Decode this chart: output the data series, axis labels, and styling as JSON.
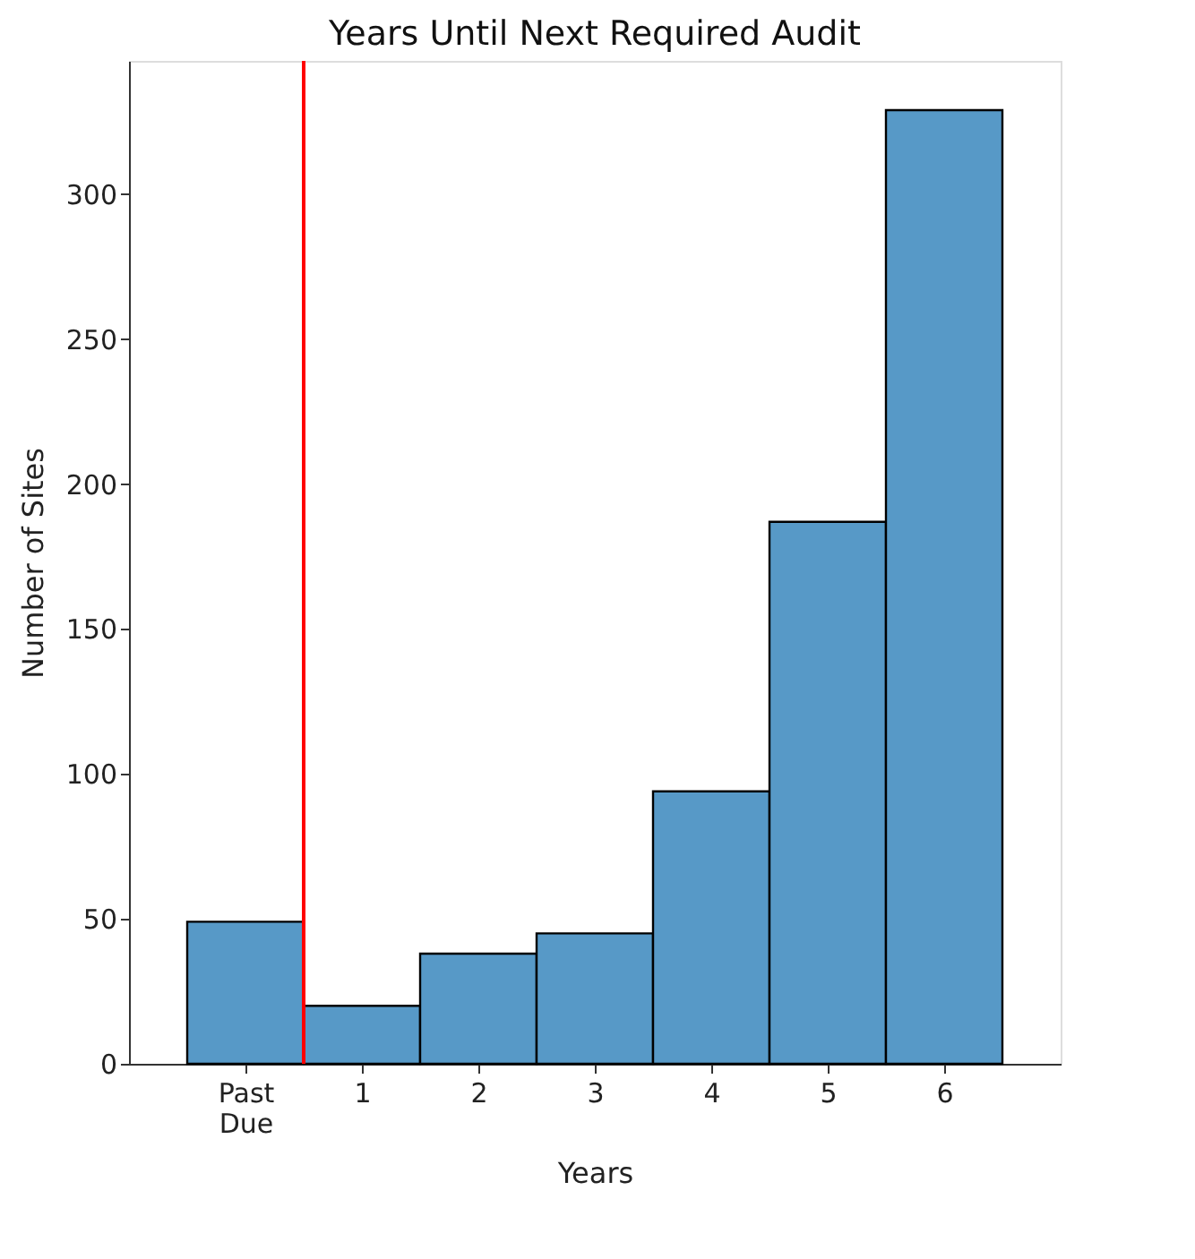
{
  "chart_data": {
    "type": "histogram",
    "title": "Years Until Next Required Audit",
    "xlabel": "Years",
    "ylabel": "Number of Sites",
    "bins": [
      -0.5,
      0.5,
      1.5,
      2.5,
      3.5,
      4.5,
      5.5,
      6.5
    ],
    "values": [
      49,
      20,
      38,
      45,
      94,
      187,
      329
    ],
    "color": "#5799c7",
    "xlim": [
      -1,
      7
    ],
    "xticks": [
      {
        "value": 0,
        "label": "Past\nDue"
      },
      1,
      2,
      3,
      4,
      5,
      6
    ],
    "ylim": [
      0,
      346
    ],
    "yticks": [
      0,
      50,
      100,
      150,
      200,
      250,
      300
    ],
    "ref_lines": [
      {
        "axis": "x",
        "value": 0.5,
        "color": "#ff0000"
      }
    ],
    "grid": false
  }
}
